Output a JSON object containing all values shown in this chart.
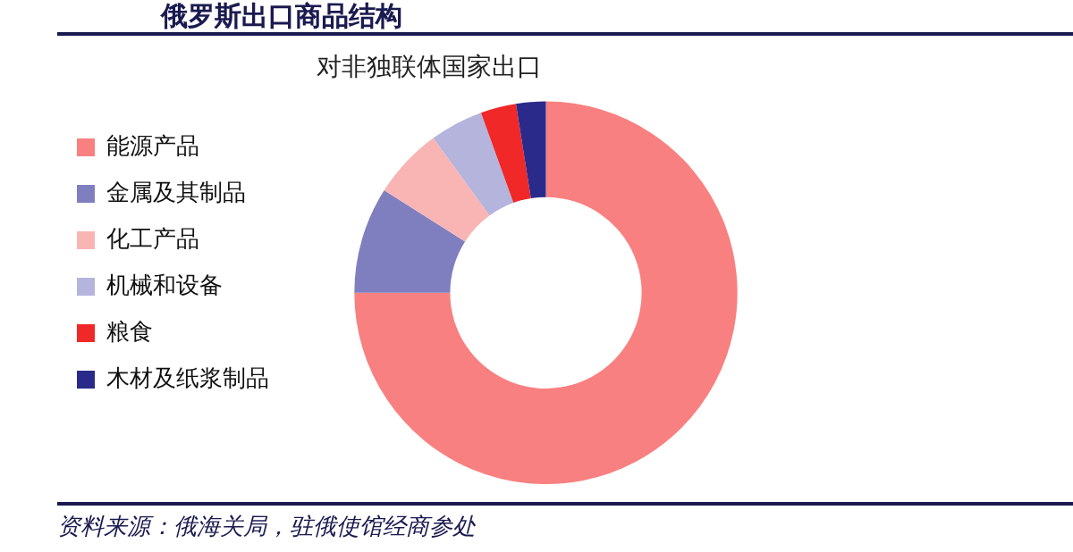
{
  "chart_data": {
    "type": "donut",
    "title": "俄罗斯出口商品结构",
    "subtitle": "对非独联体国家出口",
    "categories": [
      "能源产品",
      "金属及其制品",
      "化工产品",
      "机械和设备",
      "粮食",
      "木材及纸浆制品"
    ],
    "values": [
      75,
      9,
      6,
      4.5,
      3,
      2.5
    ],
    "colors": [
      "#f98080",
      "#7f7fc0",
      "#f9b4b4",
      "#b4b4dc",
      "#f02828",
      "#2a2a8a"
    ],
    "legend": "left",
    "annotations": [
      "资料来源：俄海关局，驻俄使馆经商参处"
    ]
  }
}
